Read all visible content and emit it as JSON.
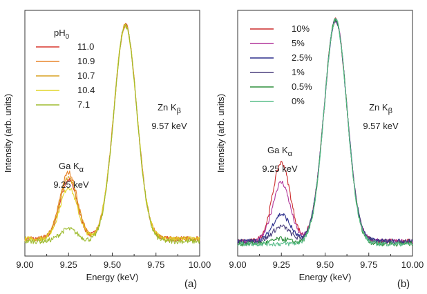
{
  "chart_data": [
    {
      "type": "line",
      "panel_label": "(a)",
      "xlabel": "Energy (keV)",
      "ylabel": "Intensity (arb. units)",
      "xlim": [
        9.0,
        10.0
      ],
      "ylim": [
        0,
        1.0
      ],
      "xticks": [
        "9.00",
        "9.25",
        "9.50",
        "9.75",
        "10.00"
      ],
      "legend_title": {
        "main": "pH",
        "sub": "0"
      },
      "legend_position": "top-left",
      "annotations": [
        {
          "line1_main": "Ga K",
          "line1_sub": "α",
          "line2": "9.25 keV"
        },
        {
          "line1_main": "Zn K",
          "line1_sub": "β",
          "line2": "9.57 keV"
        }
      ],
      "peaks": {
        "ga_center": 9.25,
        "ga_width": 0.05,
        "zn_center": 9.575,
        "zn_width": 0.065,
        "zn_height": 0.94
      },
      "series": [
        {
          "name": "11.0",
          "color": "#d8352b",
          "ga_height": 0.24,
          "baseline": 0.07
        },
        {
          "name": "10.9",
          "color": "#e8852c",
          "ga_height": 0.27,
          "baseline": 0.07
        },
        {
          "name": "10.7",
          "color": "#d9a020",
          "ga_height": 0.25,
          "baseline": 0.07
        },
        {
          "name": "10.4",
          "color": "#e2d52a",
          "ga_height": 0.21,
          "baseline": 0.07
        },
        {
          "name": "7.1",
          "color": "#9dbb2f",
          "ga_height": 0.05,
          "baseline": 0.06
        }
      ]
    },
    {
      "type": "line",
      "panel_label": "(b)",
      "xlabel": "Energy (keV)",
      "ylabel": "Intensity (arb. units)",
      "xlim": [
        9.0,
        10.0
      ],
      "ylim": [
        0,
        1.0
      ],
      "xticks": [
        "9.00",
        "9.25",
        "9.50",
        "9.75",
        "10.00"
      ],
      "legend_position": "top-left",
      "annotations": [
        {
          "line1_main": "Ga K",
          "line1_sub": "α",
          "line2": "9.25 keV"
        },
        {
          "line1_main": "Zn K",
          "line1_sub": "β",
          "line2": "9.57 keV"
        }
      ],
      "peaks": {
        "ga_center": 9.25,
        "ga_width": 0.05,
        "zn_center": 9.56,
        "zn_width": 0.065,
        "zn_height": 0.96
      },
      "series": [
        {
          "name": "10%",
          "color": "#cc2a2a",
          "ga_height": 0.32,
          "baseline": 0.06
        },
        {
          "name": "5%",
          "color": "#b0359a",
          "ga_height": 0.24,
          "baseline": 0.06
        },
        {
          "name": "2.5%",
          "color": "#2c2f8c",
          "ga_height": 0.11,
          "baseline": 0.06
        },
        {
          "name": "1%",
          "color": "#4a3f7d",
          "ga_height": 0.06,
          "baseline": 0.06
        },
        {
          "name": "0.5%",
          "color": "#2e8f3c",
          "ga_height": 0.02,
          "baseline": 0.05
        },
        {
          "name": "0%",
          "color": "#58bd8a",
          "ga_height": 0.0,
          "baseline": 0.05
        }
      ]
    }
  ]
}
